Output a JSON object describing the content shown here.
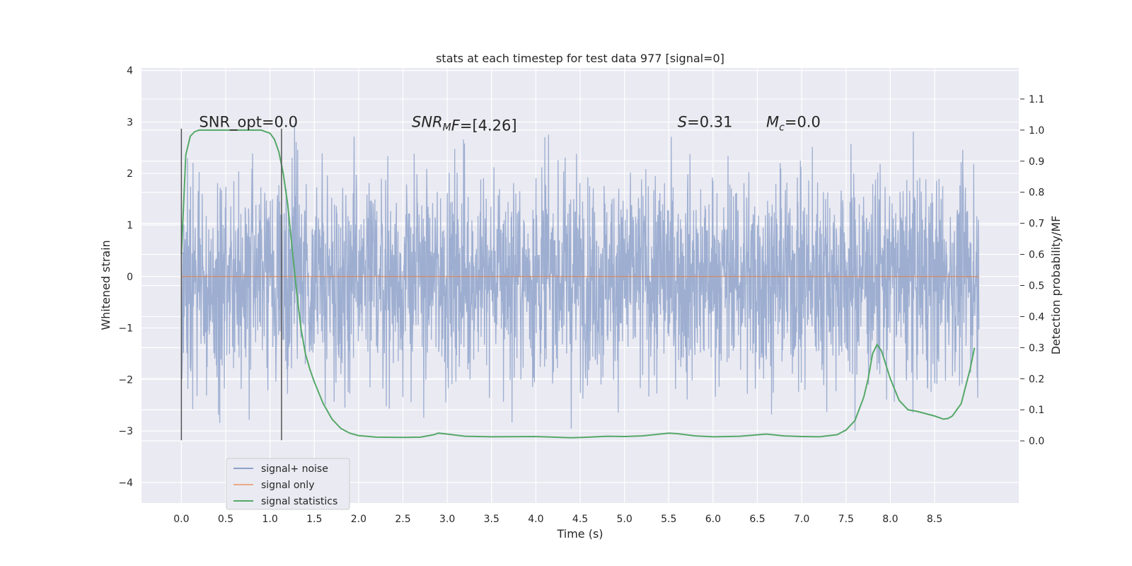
{
  "chart_data": {
    "type": "line",
    "title": "stats at each timestep for test data 977 [signal=0]",
    "xlabel": "Time (s)",
    "ylabel_left": "Whitened strain",
    "ylabel_right": "Detection probability/MF",
    "xlim": [
      -0.45,
      9.45
    ],
    "ylim_left": [
      -4.4,
      4.05
    ],
    "ylim_right": [
      -0.2,
      1.2
    ],
    "x_ticks": [
      "0.0",
      "0.5",
      "1.0",
      "1.5",
      "2.0",
      "2.5",
      "3.0",
      "3.5",
      "4.0",
      "4.5",
      "5.0",
      "5.5",
      "6.0",
      "6.5",
      "7.0",
      "7.5",
      "8.0",
      "8.5"
    ],
    "y_ticks_left": [
      "−4",
      "−3",
      "−2",
      "−1",
      "0",
      "1",
      "2",
      "3",
      "4"
    ],
    "y_ticks_right": [
      "0.0",
      "0.1",
      "0.2",
      "0.3",
      "0.4",
      "0.5",
      "0.6",
      "0.7",
      "0.8",
      "0.9",
      "1.0",
      "1.1"
    ],
    "grid": true,
    "legend_position": "lower-left",
    "series": [
      {
        "name": "signal+ noise",
        "axis": "left",
        "color": "#99abcf",
        "description_values": {
          "x_start": 0.0,
          "x_end": 9.0,
          "mean": 0.0,
          "std": 1.0
        }
      },
      {
        "name": "signal only",
        "axis": "left",
        "color": "#dd8452",
        "x": [
          0.0,
          9.0
        ],
        "y": [
          0.0,
          0.0
        ]
      },
      {
        "name": "signal statistics",
        "axis": "right",
        "color": "#55a868",
        "x": [
          0.0,
          0.05,
          0.1,
          0.15,
          0.2,
          0.3,
          0.5,
          0.7,
          0.9,
          1.0,
          1.05,
          1.1,
          1.15,
          1.2,
          1.25,
          1.3,
          1.35,
          1.4,
          1.45,
          1.5,
          1.6,
          1.7,
          1.8,
          1.9,
          2.0,
          2.2,
          2.5,
          2.7,
          2.85,
          2.9,
          3.0,
          3.2,
          3.5,
          4.0,
          4.2,
          4.4,
          4.6,
          4.8,
          5.0,
          5.2,
          5.4,
          5.5,
          5.6,
          5.8,
          6.0,
          6.3,
          6.6,
          6.8,
          7.0,
          7.2,
          7.4,
          7.5,
          7.6,
          7.7,
          7.75,
          7.8,
          7.85,
          7.9,
          8.0,
          8.1,
          8.2,
          8.3,
          8.5,
          8.6,
          8.65,
          8.7,
          8.8,
          8.9,
          8.95
        ],
        "y": [
          0.6,
          0.92,
          0.98,
          0.995,
          1.0,
          1.0,
          1.0,
          1.0,
          1.0,
          0.99,
          0.97,
          0.93,
          0.86,
          0.76,
          0.62,
          0.48,
          0.36,
          0.28,
          0.23,
          0.19,
          0.12,
          0.07,
          0.04,
          0.025,
          0.017,
          0.012,
          0.011,
          0.012,
          0.02,
          0.025,
          0.022,
          0.015,
          0.013,
          0.014,
          0.012,
          0.01,
          0.012,
          0.015,
          0.014,
          0.016,
          0.022,
          0.025,
          0.023,
          0.016,
          0.013,
          0.015,
          0.022,
          0.016,
          0.014,
          0.013,
          0.02,
          0.035,
          0.065,
          0.14,
          0.2,
          0.28,
          0.31,
          0.29,
          0.2,
          0.13,
          0.1,
          0.095,
          0.08,
          0.07,
          0.072,
          0.08,
          0.12,
          0.23,
          0.3
        ]
      }
    ],
    "vertical_lines": [
      {
        "x": 0.0,
        "ymin": -3.18,
        "ymax": 2.87
      },
      {
        "x": 1.13,
        "ymin": -3.18,
        "ymax": 2.87
      }
    ],
    "annotations": [
      {
        "type": "plain",
        "text": "SNR_opt=0.0",
        "x": 0.2,
        "y": 2.9
      },
      {
        "type": "snr_mf",
        "base": "SNR",
        "sub": "M",
        "after": "F=[4.26]",
        "x": 2.6,
        "y": 2.9
      },
      {
        "type": "italic_eq",
        "sym": "S",
        "value": "=0.31",
        "x": 5.6,
        "y": 2.9
      },
      {
        "type": "sub_eq",
        "sym": "M",
        "sub": "c",
        "value": "=0.0",
        "x": 6.6,
        "y": 2.9
      }
    ]
  }
}
